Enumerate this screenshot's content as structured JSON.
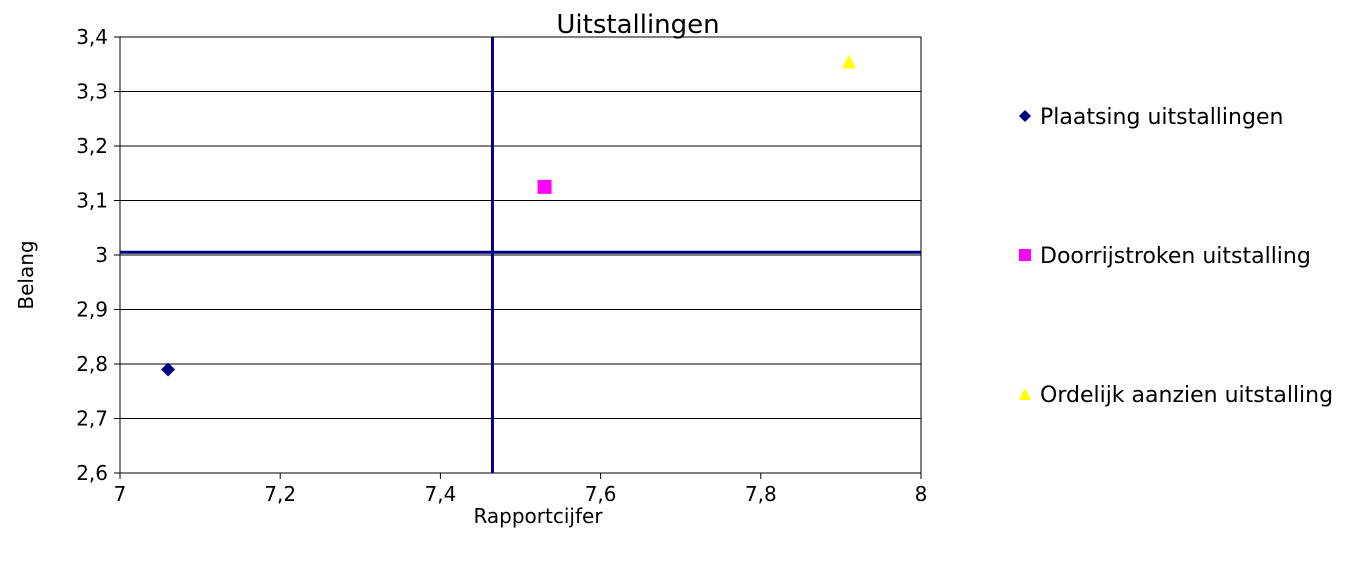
{
  "chart_data": {
    "type": "scatter",
    "title": "Uitstallingen",
    "xlabel": "Rapportcijfer",
    "ylabel": "Belang",
    "xlim": [
      7,
      8
    ],
    "ylim": [
      2.6,
      3.4
    ],
    "x_ticks": [
      7,
      7.2,
      7.4,
      7.6,
      7.8,
      8
    ],
    "x_tick_labels": [
      "7",
      "7,2",
      "7,4",
      "7,6",
      "7,8",
      "8"
    ],
    "y_ticks": [
      2.6,
      2.7,
      2.8,
      2.9,
      3.0,
      3.1,
      3.2,
      3.3,
      3.4
    ],
    "y_tick_labels": [
      "2,6",
      "2,7",
      "2,8",
      "2,9",
      "3",
      "3,1",
      "3,2",
      "3,3",
      "3,4"
    ],
    "grid": "horizontal",
    "legend_position": "right",
    "reference_lines": {
      "x": 7.465,
      "y": 3.005,
      "color": "#000080"
    },
    "series": [
      {
        "name": "Plaatsing uitstallingen",
        "marker": "diamond",
        "color": "#000080",
        "points": [
          {
            "x": 7.06,
            "y": 2.79
          }
        ]
      },
      {
        "name": "Doorrijstroken uitstalling",
        "marker": "square",
        "color": "#ff00ff",
        "points": [
          {
            "x": 7.53,
            "y": 3.125
          }
        ]
      },
      {
        "name": "Ordelijk aanzien uitstalling",
        "marker": "triangle",
        "color": "#ffff00",
        "points": [
          {
            "x": 7.91,
            "y": 3.355
          }
        ]
      }
    ]
  }
}
